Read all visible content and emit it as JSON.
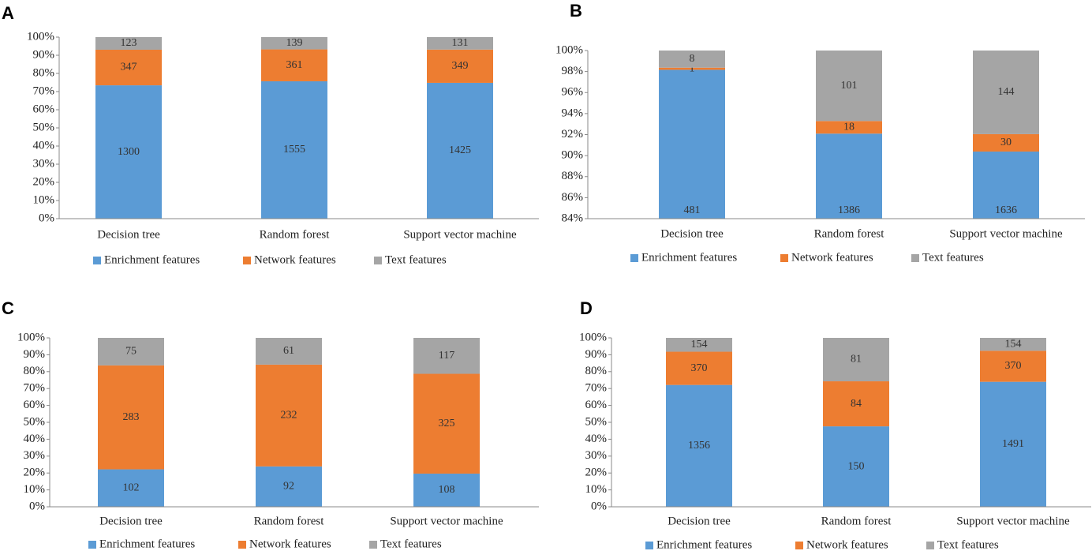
{
  "chart_data": [
    {
      "type": "bar",
      "stacking": "percent",
      "label": "A",
      "categories": [
        "Decision tree",
        "Random forest",
        "Support vector machine"
      ],
      "series": [
        {
          "name": "Enrichment features",
          "color": "#5b9bd5",
          "values": [
            1300,
            1555,
            1425
          ]
        },
        {
          "name": "Network features",
          "color": "#ed7d31",
          "values": [
            347,
            361,
            349
          ]
        },
        {
          "name": "Text features",
          "color": "#a5a5a5",
          "values": [
            123,
            139,
            131
          ]
        }
      ],
      "ylim": [
        0,
        100
      ],
      "yticks": [
        {
          "value": 0,
          "label": "0%"
        },
        {
          "value": 10,
          "label": "10%"
        },
        {
          "value": 20,
          "label": "20%"
        },
        {
          "value": 30,
          "label": "30%"
        },
        {
          "value": 40,
          "label": "40%"
        },
        {
          "value": 50,
          "label": "50%"
        },
        {
          "value": 60,
          "label": "60%"
        },
        {
          "value": 70,
          "label": "70%"
        },
        {
          "value": 80,
          "label": "80%"
        },
        {
          "value": 90,
          "label": "90%"
        },
        {
          "value": 100,
          "label": "100%"
        }
      ],
      "legend": "bottom"
    },
    {
      "type": "bar",
      "stacking": "percent",
      "label": "B",
      "categories": [
        "Decision tree",
        "Random forest",
        "Support vector machine"
      ],
      "series": [
        {
          "name": "Enrichment features",
          "color": "#5b9bd5",
          "values": [
            481,
            1386,
            1636
          ]
        },
        {
          "name": "Network features",
          "color": "#ed7d31",
          "values": [
            1,
            18,
            30
          ]
        },
        {
          "name": "Text features",
          "color": "#a5a5a5",
          "values": [
            8,
            101,
            144
          ]
        }
      ],
      "ylim": [
        84,
        100
      ],
      "yticks": [
        {
          "value": 84,
          "label": "84%"
        },
        {
          "value": 86,
          "label": "86%"
        },
        {
          "value": 88,
          "label": "88%"
        },
        {
          "value": 90,
          "label": "90%"
        },
        {
          "value": 92,
          "label": "92%"
        },
        {
          "value": 94,
          "label": "94%"
        },
        {
          "value": 96,
          "label": "96%"
        },
        {
          "value": 98,
          "label": "98%"
        },
        {
          "value": 100,
          "label": "100%"
        }
      ],
      "legend": "bottom"
    },
    {
      "type": "bar",
      "stacking": "percent",
      "label": "C",
      "categories": [
        "Decision tree",
        "Random forest",
        "Support vector machine"
      ],
      "series": [
        {
          "name": "Enrichment features",
          "color": "#5b9bd5",
          "values": [
            102,
            92,
            108
          ]
        },
        {
          "name": "Network features",
          "color": "#ed7d31",
          "values": [
            283,
            232,
            325
          ]
        },
        {
          "name": "Text features",
          "color": "#a5a5a5",
          "values": [
            75,
            61,
            117
          ]
        }
      ],
      "ylim": [
        0,
        100
      ],
      "yticks": [
        {
          "value": 0,
          "label": "0%"
        },
        {
          "value": 10,
          "label": "10%"
        },
        {
          "value": 20,
          "label": "20%"
        },
        {
          "value": 30,
          "label": "30%"
        },
        {
          "value": 40,
          "label": "40%"
        },
        {
          "value": 50,
          "label": "50%"
        },
        {
          "value": 60,
          "label": "60%"
        },
        {
          "value": 70,
          "label": "70%"
        },
        {
          "value": 80,
          "label": "80%"
        },
        {
          "value": 90,
          "label": "90%"
        },
        {
          "value": 100,
          "label": "100%"
        }
      ],
      "legend": "bottom"
    },
    {
      "type": "bar",
      "stacking": "percent",
      "label": "D",
      "categories": [
        "Decision tree",
        "Random forest",
        "Support vector machine"
      ],
      "series": [
        {
          "name": "Enrichment features",
          "color": "#5b9bd5",
          "values": [
            1356,
            150,
            1491
          ]
        },
        {
          "name": "Network features",
          "color": "#ed7d31",
          "values": [
            370,
            84,
            370
          ]
        },
        {
          "name": "Text features",
          "color": "#a5a5a5",
          "values": [
            154,
            81,
            154
          ]
        }
      ],
      "ylim": [
        0,
        100
      ],
      "yticks": [
        {
          "value": 0,
          "label": "0%"
        },
        {
          "value": 10,
          "label": "10%"
        },
        {
          "value": 20,
          "label": "20%"
        },
        {
          "value": 30,
          "label": "30%"
        },
        {
          "value": 40,
          "label": "40%"
        },
        {
          "value": 50,
          "label": "50%"
        },
        {
          "value": 60,
          "label": "60%"
        },
        {
          "value": 70,
          "label": "70%"
        },
        {
          "value": 80,
          "label": "80%"
        },
        {
          "value": 90,
          "label": "90%"
        },
        {
          "value": 100,
          "label": "100%"
        }
      ],
      "legend": "bottom"
    }
  ]
}
